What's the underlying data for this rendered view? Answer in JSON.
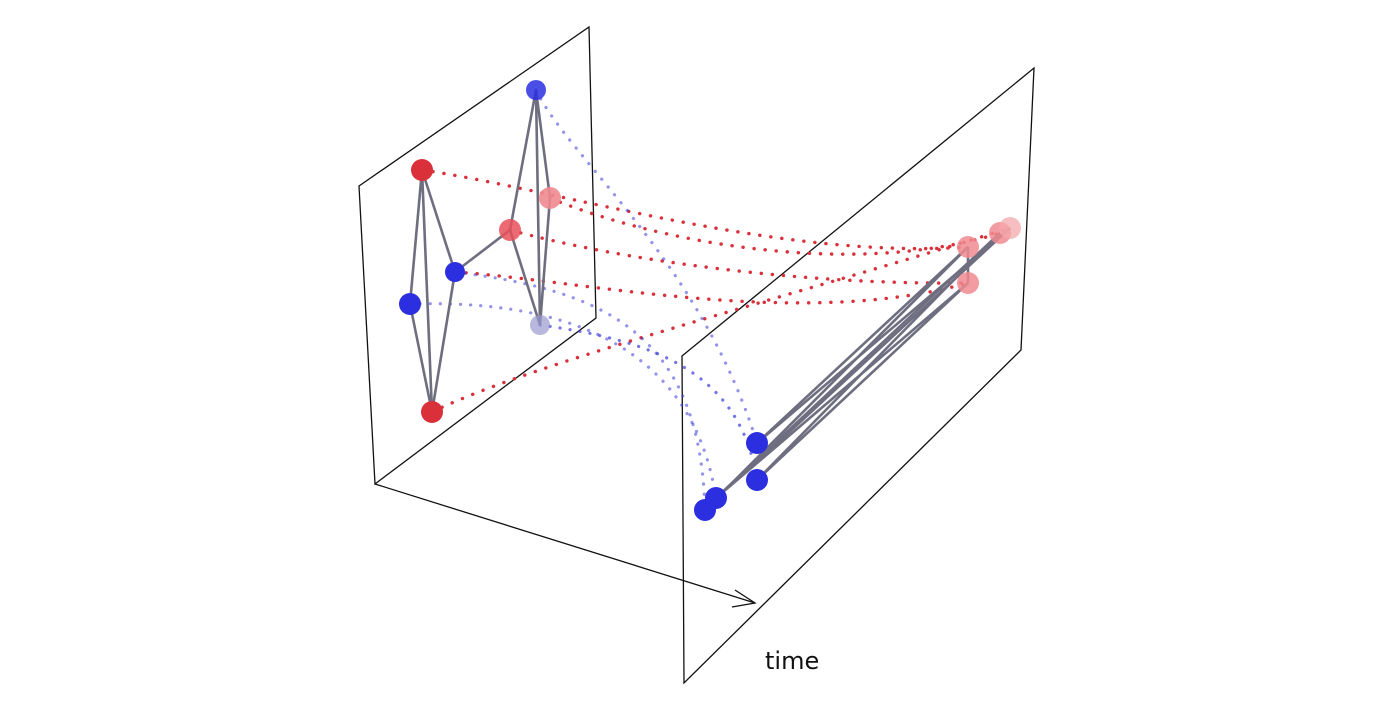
{
  "diagram": {
    "axis_label": "time",
    "colors": {
      "red_node": "#d9303a",
      "red_node_faded": "#f08a8f",
      "blue_node": "#2b2fe0",
      "blue_node_faded": "#9a9ad0",
      "edge": "#6e6e80",
      "frame": "#111111"
    }
  }
}
